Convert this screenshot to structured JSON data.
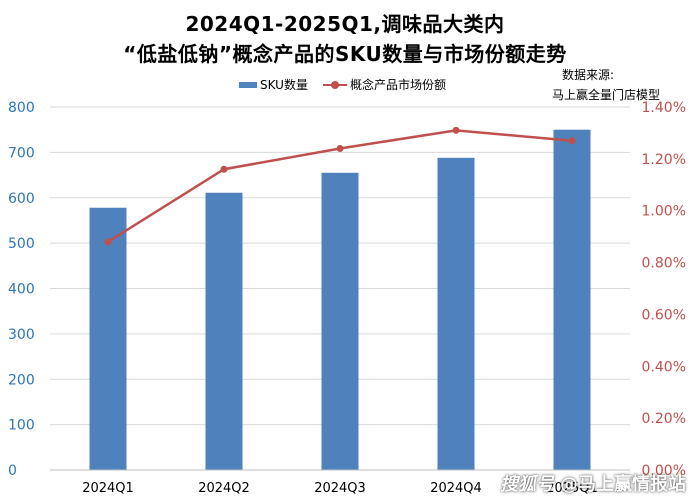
{
  "chart_data": {
    "type": "bar+line",
    "title_line1": "2024Q1-2025Q1,调味品大类内",
    "title_line2": "“低盐低钠”概念产品的SKU数量与市场份额走势",
    "source_line1": "数据来源:",
    "source_line2": "马上赢全量门店模型",
    "categories": [
      "2024Q1",
      "2024Q2",
      "2024Q3",
      "2024Q4",
      "2025Q1"
    ],
    "series": [
      {
        "name": "SKU数量",
        "type": "bar",
        "axis": "left",
        "color": "#4f81bd",
        "values": [
          578,
          611,
          655,
          688,
          750
        ]
      },
      {
        "name": "概念产品市场份额",
        "type": "line",
        "axis": "right",
        "color": "#c0504d",
        "values": [
          0.88,
          1.16,
          1.24,
          1.31,
          1.27
        ]
      }
    ],
    "y_left": {
      "min": 0,
      "max": 800,
      "ticks": [
        "0",
        "100",
        "200",
        "300",
        "400",
        "500",
        "600",
        "700",
        "800"
      ]
    },
    "y_right": {
      "min": 0,
      "max": 1.4,
      "ticks": [
        "0.00%",
        "0.20%",
        "0.40%",
        "0.60%",
        "0.80%",
        "1.00%",
        "1.20%",
        "1.40%"
      ]
    },
    "grid": true,
    "legend_position": "top"
  },
  "watermark": {
    "logo": "搜狐号",
    "account": "@马上赢情报站"
  }
}
